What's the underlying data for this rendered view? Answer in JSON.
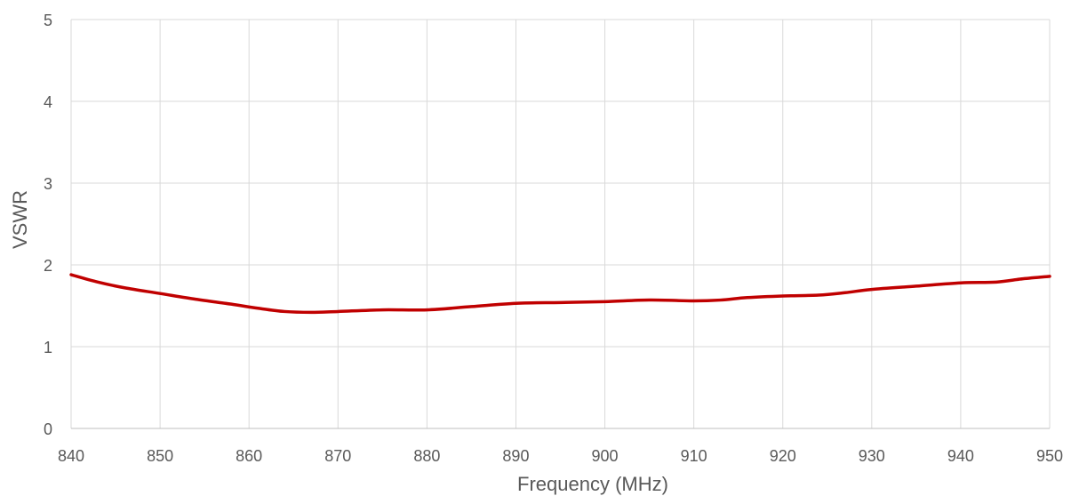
{
  "chart_data": {
    "type": "line",
    "title": "",
    "xlabel": "Frequency (MHz)",
    "ylabel": "VSWR",
    "xlim": [
      840,
      950
    ],
    "ylim": [
      0,
      5
    ],
    "x_ticks": [
      840,
      850,
      860,
      870,
      880,
      890,
      900,
      910,
      920,
      930,
      940,
      950
    ],
    "y_ticks": [
      0,
      1,
      2,
      3,
      4,
      5
    ],
    "grid": true,
    "legend": "none",
    "series": [
      {
        "color": "#C00000",
        "x": [
          840,
          843,
          846,
          850,
          854,
          858,
          861,
          864,
          867,
          870,
          875,
          880,
          885,
          890,
          895,
          900,
          905,
          910,
          913,
          916,
          920,
          924,
          927,
          930,
          935,
          940,
          944,
          947,
          950
        ],
        "y": [
          1.88,
          1.79,
          1.72,
          1.65,
          1.58,
          1.52,
          1.47,
          1.43,
          1.42,
          1.43,
          1.45,
          1.45,
          1.49,
          1.53,
          1.54,
          1.55,
          1.57,
          1.56,
          1.57,
          1.6,
          1.62,
          1.63,
          1.66,
          1.7,
          1.74,
          1.78,
          1.79,
          1.83,
          1.86
        ]
      }
    ]
  }
}
